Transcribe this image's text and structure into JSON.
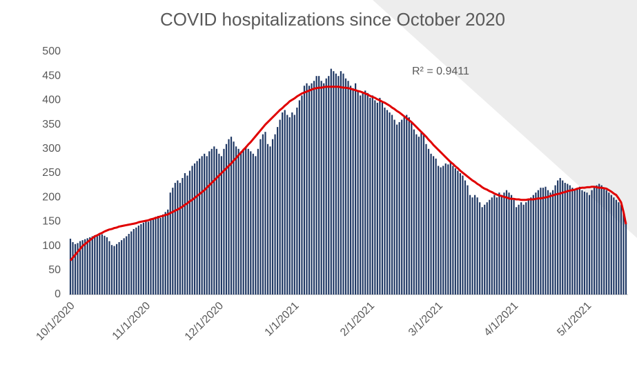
{
  "chart_data": {
    "type": "bar",
    "title": "COVID hospitalizations since October 2020",
    "annotation": "R² = 0.9411",
    "categories": [
      "10/1/2020",
      null,
      null,
      null,
      null,
      null,
      null,
      null,
      null,
      null,
      null,
      null,
      null,
      null,
      null,
      null,
      null,
      null,
      null,
      null,
      null,
      null,
      null,
      null,
      null,
      null,
      null,
      null,
      null,
      null,
      null,
      "11/1/2020",
      null,
      null,
      null,
      null,
      null,
      null,
      null,
      null,
      null,
      null,
      null,
      null,
      null,
      null,
      null,
      null,
      null,
      null,
      null,
      null,
      null,
      null,
      null,
      null,
      null,
      null,
      null,
      null,
      null,
      "12/1/2020",
      null,
      null,
      null,
      null,
      null,
      null,
      null,
      null,
      null,
      null,
      null,
      null,
      null,
      null,
      null,
      null,
      null,
      null,
      null,
      null,
      null,
      null,
      null,
      null,
      null,
      null,
      null,
      null,
      null,
      null,
      "1/1/2021",
      null,
      null,
      null,
      null,
      null,
      null,
      null,
      null,
      null,
      null,
      null,
      null,
      null,
      null,
      null,
      null,
      null,
      null,
      null,
      null,
      null,
      null,
      null,
      null,
      null,
      null,
      null,
      null,
      null,
      null,
      "2/1/2021",
      null,
      null,
      null,
      null,
      null,
      null,
      null,
      null,
      null,
      null,
      null,
      null,
      null,
      null,
      null,
      null,
      null,
      null,
      null,
      null,
      null,
      null,
      null,
      null,
      null,
      null,
      null,
      "3/1/2021",
      null,
      null,
      null,
      null,
      null,
      null,
      null,
      null,
      null,
      null,
      null,
      null,
      null,
      null,
      null,
      null,
      null,
      null,
      null,
      null,
      null,
      null,
      null,
      null,
      null,
      null,
      null,
      null,
      null,
      null,
      "4/1/2021",
      null,
      null,
      null,
      null,
      null,
      null,
      null,
      null,
      null,
      null,
      null,
      null,
      null,
      null,
      null,
      null,
      null,
      null,
      null,
      null,
      null,
      null,
      null,
      null,
      null,
      null,
      null,
      null,
      null,
      "5/1/2021",
      null,
      null,
      null,
      null,
      null,
      null,
      null,
      null,
      null,
      null,
      null,
      null,
      null,
      null,
      null,
      null
    ],
    "values": [
      115,
      108,
      104,
      106,
      110,
      112,
      114,
      116,
      118,
      120,
      122,
      120,
      123,
      124,
      121,
      118,
      110,
      102,
      100,
      104,
      108,
      112,
      116,
      120,
      125,
      130,
      135,
      138,
      142,
      145,
      148,
      152,
      150,
      155,
      158,
      160,
      162,
      158,
      165,
      170,
      175,
      210,
      220,
      230,
      235,
      230,
      240,
      250,
      245,
      255,
      265,
      270,
      275,
      280,
      285,
      290,
      285,
      295,
      300,
      305,
      300,
      290,
      285,
      300,
      310,
      320,
      325,
      315,
      305,
      300,
      295,
      300,
      305,
      300,
      295,
      290,
      285,
      300,
      320,
      330,
      335,
      310,
      305,
      320,
      330,
      345,
      360,
      375,
      380,
      370,
      365,
      375,
      370,
      385,
      400,
      410,
      430,
      435,
      430,
      435,
      440,
      450,
      450,
      440,
      435,
      445,
      450,
      465,
      460,
      455,
      450,
      460,
      455,
      445,
      440,
      430,
      425,
      435,
      420,
      410,
      415,
      420,
      415,
      405,
      410,
      400,
      395,
      405,
      395,
      385,
      380,
      375,
      370,
      360,
      350,
      355,
      360,
      365,
      370,
      365,
      355,
      340,
      330,
      325,
      335,
      330,
      310,
      300,
      290,
      285,
      280,
      265,
      262,
      265,
      270,
      268,
      272,
      265,
      260,
      255,
      250,
      245,
      235,
      225,
      205,
      200,
      205,
      200,
      190,
      180,
      185,
      190,
      195,
      200,
      205,
      200,
      210,
      205,
      210,
      215,
      210,
      205,
      195,
      180,
      185,
      190,
      185,
      190,
      195,
      200,
      205,
      210,
      215,
      220,
      220,
      222,
      215,
      210,
      215,
      225,
      235,
      240,
      235,
      230,
      228,
      225,
      220,
      215,
      218,
      222,
      215,
      212,
      210,
      205,
      215,
      220,
      225,
      228,
      225,
      220,
      215,
      210,
      205,
      200,
      195,
      190,
      185,
      170,
      150
    ],
    "color": "#1f3864",
    "trendline": {
      "color": "#e00000",
      "values": [
        70,
        76,
        82,
        88,
        94,
        100,
        104,
        108,
        112,
        116,
        120,
        122,
        125,
        127,
        130,
        132,
        134,
        135,
        137,
        138,
        140,
        141,
        142,
        143,
        144,
        145,
        146,
        147,
        149,
        150,
        151,
        152,
        153,
        155,
        156,
        158,
        159,
        161,
        162,
        164,
        165,
        168,
        170,
        173,
        175,
        178,
        181,
        185,
        188,
        192,
        195,
        199,
        203,
        207,
        211,
        215,
        220,
        225,
        230,
        235,
        240,
        245,
        250,
        255,
        260,
        265,
        270,
        276,
        281,
        287,
        292,
        298,
        303,
        309,
        314,
        320,
        326,
        332,
        338,
        344,
        350,
        355,
        360,
        365,
        370,
        375,
        380,
        384,
        389,
        393,
        398,
        401,
        404,
        408,
        411,
        414,
        416,
        418,
        420,
        422,
        424,
        425,
        426,
        426,
        427,
        428,
        428,
        428,
        428,
        428,
        428,
        427,
        426,
        426,
        425,
        424,
        422,
        421,
        419,
        418,
        416,
        414,
        412,
        409,
        407,
        405,
        402,
        400,
        397,
        395,
        392,
        389,
        385,
        382,
        378,
        375,
        371,
        367,
        363,
        359,
        355,
        350,
        345,
        340,
        335,
        330,
        325,
        319,
        314,
        308,
        303,
        298,
        293,
        288,
        283,
        278,
        273,
        269,
        264,
        260,
        255,
        251,
        247,
        243,
        239,
        235,
        232,
        228,
        225,
        221,
        218,
        216,
        213,
        211,
        208,
        206,
        204,
        203,
        201,
        200,
        198,
        197,
        197,
        196,
        196,
        195,
        195,
        195,
        196,
        196,
        196,
        197,
        198,
        198,
        199,
        200,
        201,
        203,
        204,
        206,
        207,
        208,
        210,
        211,
        213,
        214,
        215,
        216,
        218,
        219,
        220,
        220,
        221,
        221,
        222,
        222,
        221,
        220,
        220,
        219,
        218,
        215,
        212,
        208,
        205,
        198,
        190,
        170,
        145
      ]
    },
    "ylim": [
      0,
      500
    ],
    "yticks": [
      0,
      50,
      100,
      150,
      200,
      250,
      300,
      350,
      400,
      450,
      500
    ],
    "grid": false
  }
}
